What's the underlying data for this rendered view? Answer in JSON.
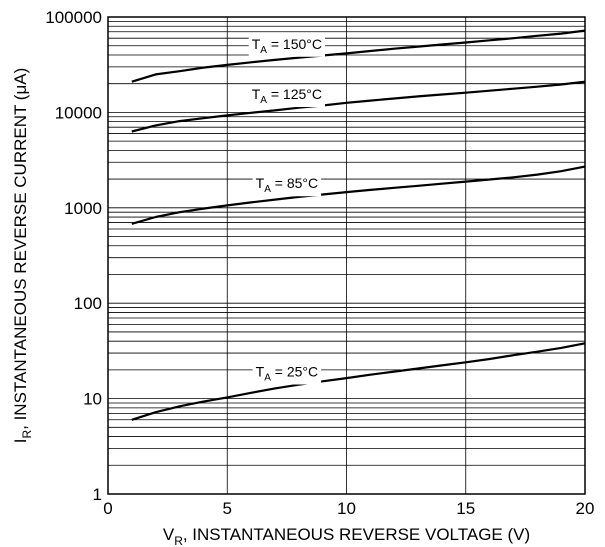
{
  "chart_data": {
    "type": "line",
    "title": "",
    "xlabel": {
      "main": "V",
      "sub": "R",
      "rest": ", INSTANTANEOUS REVERSE VOLTAGE (V)"
    },
    "ylabel": {
      "main": "I",
      "sub": "R",
      "rest": ", INSTANTANEOUS REVERSE CURRENT (μA)"
    },
    "xlim": [
      0,
      20
    ],
    "ylim": [
      1,
      100000
    ],
    "yscale": "log",
    "grid": true,
    "x_ticks": [
      0,
      5,
      10,
      15,
      20
    ],
    "x_tick_labels": [
      "0",
      "5",
      "10",
      "15",
      "20"
    ],
    "y_ticks": [
      1,
      10,
      100,
      1000,
      10000,
      100000
    ],
    "y_tick_labels": [
      "1",
      "10",
      "100",
      "1000",
      "10000",
      "100000"
    ],
    "series": [
      {
        "name": {
          "main": "T",
          "sub": "A",
          "rest": " = 150°C"
        },
        "x": [
          1,
          2,
          3,
          4,
          5,
          6,
          7,
          8,
          9,
          10,
          11,
          12,
          13,
          14,
          15,
          16,
          17,
          18,
          19,
          20
        ],
        "y": [
          21000,
          25000,
          27000,
          29500,
          31500,
          33500,
          35500,
          37500,
          39500,
          41500,
          44000,
          46500,
          49000,
          51500,
          54000,
          57000,
          60000,
          63500,
          67000,
          72000
        ]
      },
      {
        "name": {
          "main": "T",
          "sub": "A",
          "rest": " = 125°C"
        },
        "x": [
          1,
          2,
          3,
          4,
          5,
          6,
          7,
          8,
          9,
          10,
          11,
          12,
          13,
          14,
          15,
          16,
          17,
          18,
          19,
          20
        ],
        "y": [
          6300,
          7300,
          8100,
          8700,
          9300,
          9900,
          10500,
          11200,
          11800,
          12600,
          13300,
          14000,
          14700,
          15400,
          16100,
          16900,
          17700,
          18600,
          19600,
          21000
        ]
      },
      {
        "name": {
          "main": "T",
          "sub": "A",
          "rest": " = 85°C"
        },
        "x": [
          1,
          2,
          3,
          4,
          5,
          6,
          7,
          8,
          9,
          10,
          11,
          12,
          13,
          14,
          15,
          16,
          17,
          18,
          19,
          20
        ],
        "y": [
          680,
          800,
          900,
          980,
          1060,
          1140,
          1220,
          1300,
          1380,
          1460,
          1540,
          1620,
          1700,
          1790,
          1880,
          1980,
          2090,
          2230,
          2420,
          2700
        ]
      },
      {
        "name": {
          "main": "T",
          "sub": "A",
          "rest": " = 25°C"
        },
        "x": [
          1,
          2,
          3,
          4,
          5,
          6,
          7,
          8,
          9,
          10,
          11,
          12,
          13,
          14,
          15,
          16,
          17,
          18,
          19,
          20
        ],
        "y": [
          6,
          7.2,
          8.3,
          9.3,
          10.3,
          11.5,
          12.8,
          14,
          15.2,
          16.4,
          17.8,
          19.2,
          20.7,
          22.3,
          24,
          26,
          28.5,
          31,
          34,
          38
        ]
      }
    ]
  }
}
